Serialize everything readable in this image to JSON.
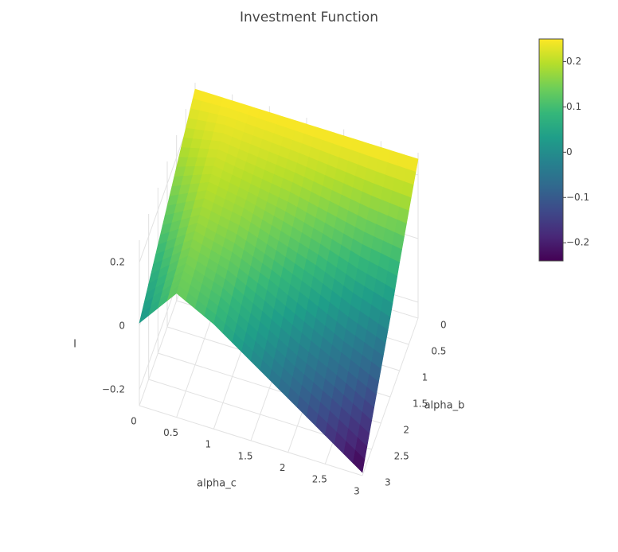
{
  "chart_data": {
    "type": "surface",
    "title": "Investment Function",
    "x_label": "alpha_c",
    "y_label": "alpha_b",
    "z_label": "I",
    "x": [
      0,
      0.5,
      1,
      1.5,
      2,
      2.5,
      3
    ],
    "y": [
      0,
      0.5,
      1,
      1.5,
      2,
      2.5,
      3
    ],
    "z": [
      [
        0.25,
        0.25,
        0.25,
        0.25,
        0.25,
        0.25,
        0.25
      ],
      [
        0.21,
        0.23,
        0.22,
        0.21,
        0.195,
        0.18,
        0.17
      ],
      [
        0.17,
        0.21,
        0.19,
        0.17,
        0.14,
        0.11,
        0.09
      ],
      [
        0.13,
        0.19,
        0.17,
        0.13,
        0.09,
        0.04,
        0.0
      ],
      [
        0.09,
        0.17,
        0.14,
        0.09,
        0.03,
        -0.03,
        -0.08
      ],
      [
        0.05,
        0.15,
        0.11,
        0.04,
        -0.03,
        -0.09,
        -0.16
      ],
      [
        0.01,
        0.14,
        0.08,
        0.0,
        -0.08,
        -0.16,
        -0.24
      ]
    ],
    "xlim": [
      0,
      3
    ],
    "ylim": [
      0,
      3
    ],
    "zlim": [
      -0.25,
      0.27
    ],
    "xticks": [
      0,
      0.5,
      1,
      1.5,
      2,
      2.5,
      3
    ],
    "yticks": [
      0,
      0.5,
      1,
      1.5,
      2,
      2.5,
      3
    ],
    "zticks": [
      {
        "value": -0.2,
        "label": "−0.2"
      },
      0,
      0.2
    ],
    "colorscale": [
      "#440154",
      "#482878",
      "#3e4989",
      "#31688e",
      "#26828e",
      "#1f9e89",
      "#35b779",
      "#6ece58",
      "#b5de2b",
      "#fde725"
    ],
    "cmin": -0.24,
    "cmax": 0.25,
    "colorbar_ticks": [
      {
        "value": -0.2,
        "label": "−0.2"
      },
      {
        "value": -0.1,
        "label": "−0.1"
      },
      0,
      0.1,
      0.2
    ],
    "grid": true
  }
}
